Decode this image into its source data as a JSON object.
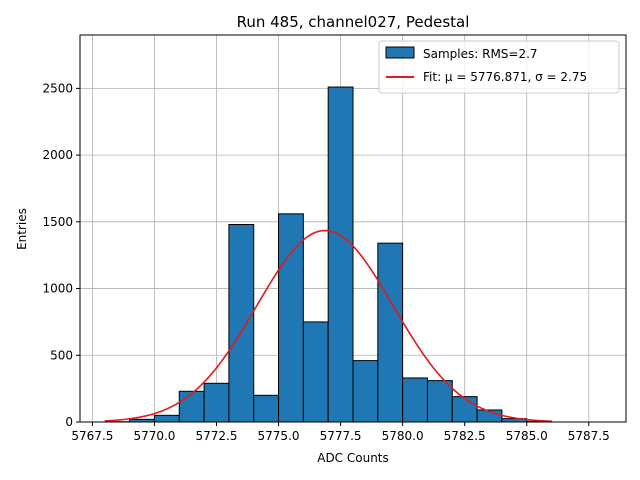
{
  "chart_data": {
    "type": "bar",
    "title": "Run 485, channel027, Pedestal",
    "xlabel": "ADC Counts",
    "ylabel": "Entries",
    "xlim": [
      5767.0,
      5789.0
    ],
    "ylim": [
      0,
      2900
    ],
    "xticks": [
      5767.5,
      5770.0,
      5772.5,
      5775.0,
      5777.5,
      5780.0,
      5782.5,
      5785.0,
      5787.5
    ],
    "xtick_labels": [
      "5767.5",
      "5770.0",
      "5772.5",
      "5775.0",
      "5777.5",
      "5780.0",
      "5782.5",
      "5785.0",
      "5787.5"
    ],
    "yticks": [
      0,
      500,
      1000,
      1500,
      2000,
      2500
    ],
    "ytick_labels": [
      "0",
      "500",
      "1000",
      "1500",
      "2000",
      "2500"
    ],
    "grid": true,
    "legend_position": "top-right",
    "bin_width": 1.0,
    "bins": [
      {
        "x0": 5768.0,
        "x1": 5769.0,
        "count": 2
      },
      {
        "x0": 5769.0,
        "x1": 5770.0,
        "count": 20
      },
      {
        "x0": 5770.0,
        "x1": 5771.0,
        "count": 50
      },
      {
        "x0": 5771.0,
        "x1": 5772.0,
        "count": 230
      },
      {
        "x0": 5772.0,
        "x1": 5773.0,
        "count": 290
      },
      {
        "x0": 5773.0,
        "x1": 5774.0,
        "count": 1480
      },
      {
        "x0": 5774.0,
        "x1": 5775.0,
        "count": 200
      },
      {
        "x0": 5775.0,
        "x1": 5776.0,
        "count": 1560
      },
      {
        "x0": 5776.0,
        "x1": 5777.0,
        "count": 750
      },
      {
        "x0": 5777.0,
        "x1": 5778.0,
        "count": 2510
      },
      {
        "x0": 5778.0,
        "x1": 5779.0,
        "count": 460
      },
      {
        "x0": 5779.0,
        "x1": 5780.0,
        "count": 1340
      },
      {
        "x0": 5780.0,
        "x1": 5781.0,
        "count": 330
      },
      {
        "x0": 5781.0,
        "x1": 5782.0,
        "count": 310
      },
      {
        "x0": 5782.0,
        "x1": 5783.0,
        "count": 190
      },
      {
        "x0": 5783.0,
        "x1": 5784.0,
        "count": 90
      },
      {
        "x0": 5784.0,
        "x1": 5785.0,
        "count": 25
      },
      {
        "x0": 5785.0,
        "x1": 5786.0,
        "count": 5
      }
    ],
    "fit": {
      "mu": 5776.871,
      "sigma": 2.75,
      "amplitude": 1435,
      "x_start": 5768.0,
      "x_end": 5786.0
    },
    "series": [
      {
        "name": "Samples: RMS=2.7",
        "kind": "histogram",
        "color": "#1f77b4",
        "edge_color": "#000000"
      },
      {
        "name": "Fit: μ = 5776.871, σ = 2.75",
        "kind": "line",
        "color": "#e41a1c"
      }
    ]
  }
}
